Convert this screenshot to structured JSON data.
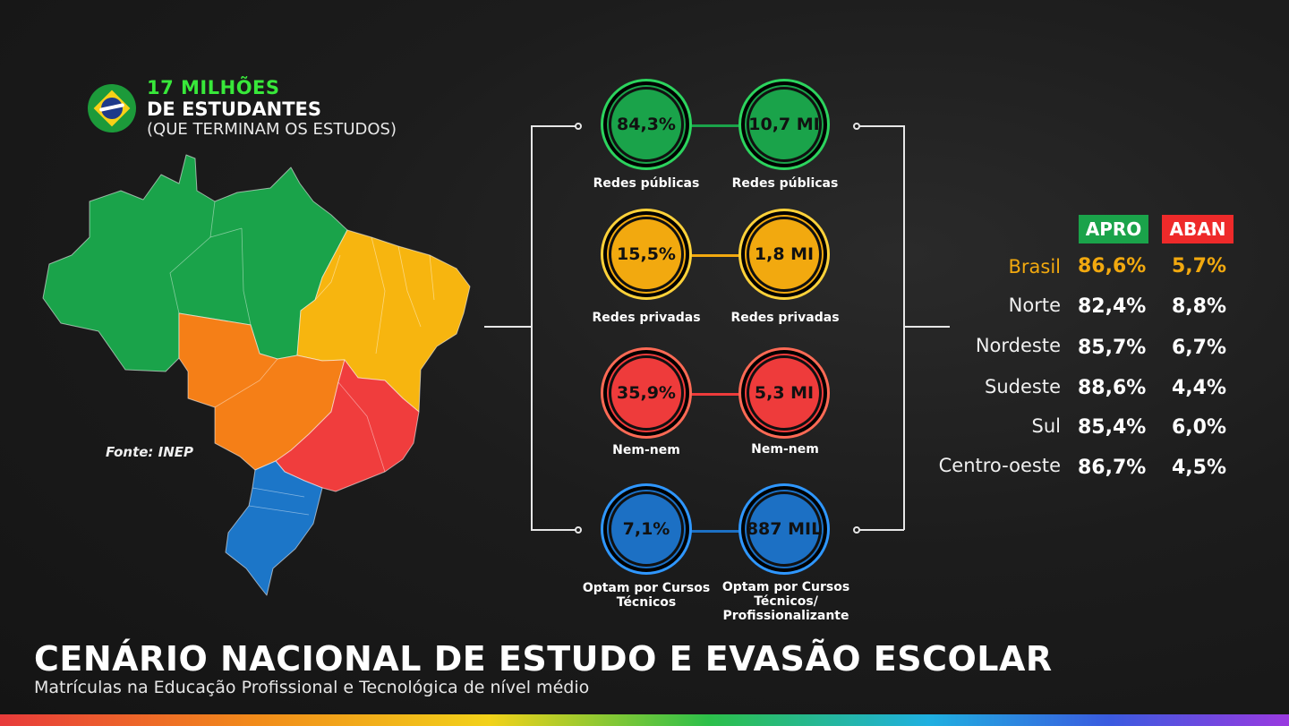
{
  "header": {
    "line1": "17 MILHÕES",
    "line2": "DE ESTUDANTES",
    "line3": "(QUE TERMINAM OS ESTUDOS)"
  },
  "source": "Fonte: INEP",
  "categories": [
    {
      "left_value": "84,3%",
      "right_value": "10,7 MI",
      "left_label": "Redes públicas",
      "right_label": "Redes públicas",
      "color": "#1aa34a"
    },
    {
      "left_value": "15,5%",
      "right_value": "1,8 MI",
      "left_label": "Redes privadas",
      "right_label": "Redes privadas",
      "color": "#f2a90f"
    },
    {
      "left_value": "35,9%",
      "right_value": "5,3 MI",
      "left_label": "Nem-nem",
      "right_label": "Nem-nem",
      "color": "#ee3b3b"
    },
    {
      "left_value": "7,1%",
      "right_value": "887 MIL",
      "left_label": "Optam por Cursos Técnicos",
      "right_label": "Optam por Cursos Técnicos/ Profissionalizante",
      "color": "#1c70c4"
    }
  ],
  "table": {
    "apro_label": "APRO",
    "aban_label": "ABAN",
    "rows": [
      {
        "region": "Brasil",
        "apro": "86,6%",
        "aban": "5,7%"
      },
      {
        "region": "Norte",
        "apro": "82,4%",
        "aban": "8,8%"
      },
      {
        "region": "Nordeste",
        "apro": "85,7%",
        "aban": "6,7%"
      },
      {
        "region": "Sudeste",
        "apro": "88,6%",
        "aban": "4,4%"
      },
      {
        "region": "Sul",
        "apro": "85,4%",
        "aban": "6,0%"
      },
      {
        "region": "Centro-oeste",
        "apro": "86,7%",
        "aban": "4,5%"
      }
    ],
    "highlight_color": "#f2a90f"
  },
  "footer": {
    "title": "CENÁRIO NACIONAL DE ESTUDO E EVASÃO ESCOLAR",
    "subtitle": "Matrículas na Educação Profissional e Tecnológica de nível médio"
  },
  "map_colors": {
    "norte": "#1aa34a",
    "nordeste": "#f7b50f",
    "centro_oeste": "#f57f17",
    "sudeste": "#f03d3d",
    "sul": "#1c76c8"
  }
}
